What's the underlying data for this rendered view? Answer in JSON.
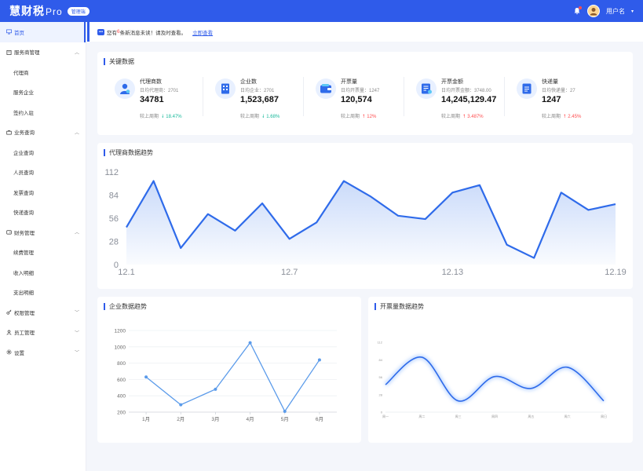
{
  "header": {
    "brand": "慧财税",
    "brand_suffix": "Pro",
    "tag": "管理端",
    "user_name": "用户名",
    "bg_color": "#2f5bea"
  },
  "sidebar": {
    "items": [
      {
        "label": "首页",
        "icon": "monitor-icon",
        "active": true
      },
      {
        "label": "服务商管理",
        "icon": "building-icon",
        "expanded": true
      },
      {
        "label": "代理商",
        "sub": true
      },
      {
        "label": "服务企业",
        "sub": true
      },
      {
        "label": "签约入驻",
        "sub": true
      },
      {
        "label": "业务查询",
        "icon": "briefcase-icon",
        "expanded": true
      },
      {
        "label": "企业查询",
        "sub": true
      },
      {
        "label": "人员查询",
        "sub": true
      },
      {
        "label": "发票查询",
        "sub": true
      },
      {
        "label": "快递查询",
        "sub": true
      },
      {
        "label": "财务管理",
        "icon": "wallet-icon",
        "expanded": true
      },
      {
        "label": "续费管理",
        "sub": true
      },
      {
        "label": "收入明细",
        "sub": true
      },
      {
        "label": "支出明细",
        "sub": true
      },
      {
        "label": "权限管理",
        "icon": "key-icon",
        "expanded": false
      },
      {
        "label": "员工管理",
        "icon": "user-icon",
        "expanded": false
      },
      {
        "label": "设置",
        "icon": "gear-icon",
        "expanded": false
      }
    ]
  },
  "notice": {
    "prefix": "您有",
    "count": "6",
    "suffix": "条新消息未读！请及时查看。",
    "link": "立即查看"
  },
  "kpi": {
    "title": "关键数据",
    "compare_label": "较上周期",
    "items": [
      {
        "name": "代理商数",
        "sub": "日均代理商：2701",
        "value": "34781",
        "change": "18.47%",
        "dir": "down",
        "icon": "agent-icon"
      },
      {
        "name": "企业数",
        "sub": "日均企业：2701",
        "value": "1,523,687",
        "change": "1.68%",
        "dir": "down",
        "icon": "building-icon"
      },
      {
        "name": "开票量",
        "sub": "日均开票量：1247",
        "value": "120,574",
        "change": "12%",
        "dir": "up",
        "icon": "wallet-icon"
      },
      {
        "name": "开票金额",
        "sub": "日均开票金额：3748.00",
        "value": "14,245,129.47",
        "change": "3.487%",
        "dir": "up",
        "icon": "invoice-icon"
      },
      {
        "name": "快递量",
        "sub": "日均快递量：27",
        "value": "1247",
        "change": "2.45%",
        "dir": "up",
        "icon": "document-icon"
      }
    ]
  },
  "chart_data": [
    {
      "type": "area",
      "title": "代理商数据趋势",
      "x": [
        "12.1",
        "12.2",
        "12.3",
        "12.4",
        "12.5",
        "12.6",
        "12.7",
        "12.8",
        "12.9",
        "12.10",
        "12.11",
        "12.12",
        "12.13",
        "12.14",
        "12.15",
        "12.16",
        "12.17",
        "12.18",
        "12.19"
      ],
      "x_tick_labels": [
        "12.1",
        "12.7",
        "12.13",
        "12.19"
      ],
      "values": [
        45,
        101,
        20,
        61,
        41,
        74,
        31,
        51,
        101,
        82,
        59,
        55,
        87,
        96,
        24,
        8,
        87,
        66,
        73
      ],
      "yticks": [
        0,
        28,
        56,
        84,
        112
      ],
      "ylim": [
        0,
        112
      ],
      "color": "#2f6bea"
    },
    {
      "type": "line",
      "title": "企业数据趋势",
      "categories": [
        "1月",
        "2月",
        "3月",
        "4月",
        "5月",
        "6月"
      ],
      "values": [
        630,
        290,
        480,
        1050,
        210,
        840
      ],
      "yticks": [
        200,
        400,
        600,
        800,
        1000,
        1200
      ],
      "ylim": [
        200,
        1200
      ],
      "color": "#5b9bea"
    },
    {
      "type": "line",
      "title": "开票量数据趋势",
      "categories": [
        "周一",
        "周二",
        "周三",
        "周四",
        "周五",
        "周六",
        "周日"
      ],
      "values": [
        44,
        88,
        18,
        57,
        38,
        72,
        18
      ],
      "yticks": [
        0,
        28,
        56,
        84,
        112
      ],
      "ylim": [
        0,
        112
      ],
      "color": "#2f6bea",
      "smooth": true
    }
  ]
}
